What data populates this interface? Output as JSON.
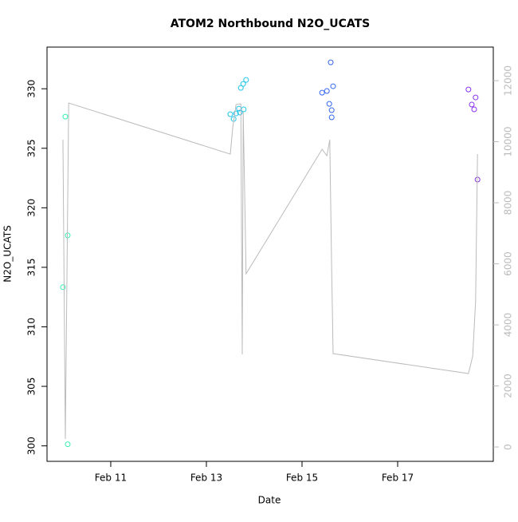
{
  "chart_data": {
    "type": "scatter",
    "title": "ATOM2 Northbound N2O_UCATS",
    "x_label": "Date",
    "y_label": "N2O_UCATS",
    "xlim": [
      9.667,
      19.0
    ],
    "xticks": [
      {
        "value": 11,
        "label": "Feb 11"
      },
      {
        "value": 13,
        "label": "Feb 13"
      },
      {
        "value": 15,
        "label": "Feb 15"
      },
      {
        "value": 17,
        "label": "Feb 17"
      }
    ],
    "ylim": [
      298.7,
      333.5
    ],
    "yticks": [
      300,
      305,
      310,
      315,
      320,
      325,
      330
    ],
    "y2lim": [
      -470,
      13100
    ],
    "y2ticks": [
      0,
      2000,
      4000,
      6000,
      8000,
      10000,
      12000
    ],
    "series": [
      {
        "color": "#33f0b0",
        "x": [
          10.0,
          10.05,
          10.1,
          10.1
        ],
        "values": [
          313.33,
          327.66,
          317.68,
          300.13
        ]
      },
      {
        "color": "#22c4e8",
        "x": [
          13.5,
          13.57,
          13.62,
          13.68,
          13.7,
          13.72,
          13.77,
          13.78,
          13.83
        ],
        "values": [
          327.86,
          327.46,
          327.93,
          328.33,
          328.0,
          330.07,
          330.41,
          328.27,
          330.74
        ]
      },
      {
        "color": "#3366ee",
        "x": [
          15.42,
          15.52,
          15.57,
          15.6,
          15.62,
          15.62,
          15.65
        ],
        "values": [
          329.67,
          329.81,
          328.73,
          332.22,
          327.6,
          328.2,
          330.21
        ]
      },
      {
        "color": "#8833ee",
        "x": [
          18.48,
          18.55,
          18.6,
          18.63,
          18.67
        ],
        "values": [
          329.94,
          328.67,
          328.27,
          329.27,
          322.37
        ]
      },
      {
        "type": "line",
        "axis": "y2",
        "color": "#bbbbbb",
        "x": [
          10.0,
          10.05,
          10.12,
          13.5,
          13.55,
          13.62,
          13.72,
          13.75,
          13.77,
          13.83,
          15.42,
          15.52,
          15.58,
          15.62,
          15.65,
          18.48,
          18.57,
          18.63,
          18.67
        ],
        "values": [
          10065,
          261,
          11268,
          9595,
          10458,
          11216,
          11242,
          3033,
          10980,
          5673,
          9752,
          9542,
          10065,
          5804,
          3059,
          2405,
          2980,
          4784,
          9595
        ]
      }
    ]
  }
}
